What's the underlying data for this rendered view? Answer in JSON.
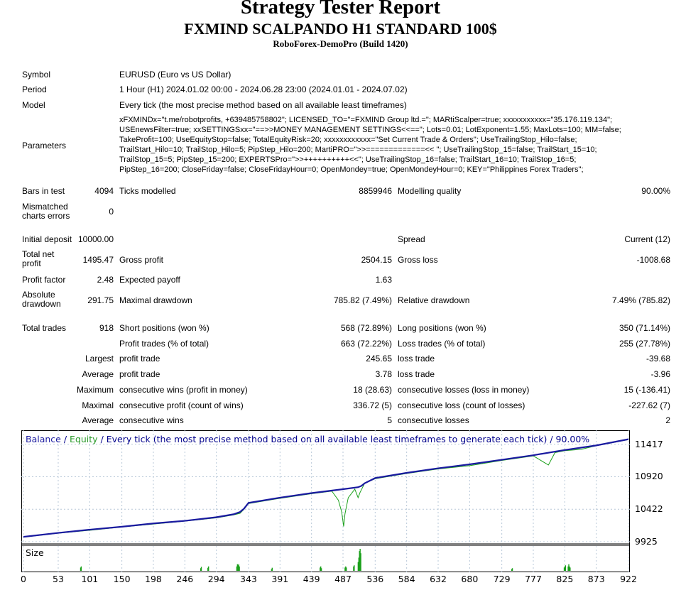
{
  "header": {
    "title": "Strategy Tester Report",
    "ea_name": "FXMIND SCALPANDO H1 STANDARD 100$",
    "server": "RoboForex-DemoPro (Build 1420)"
  },
  "info": {
    "symbol_label": "Symbol",
    "symbol_value": "EURUSD (Euro vs US Dollar)",
    "period_label": "Period",
    "period_value": "1 Hour (H1) 2024.01.02 00:00 - 2024.06.28 23:00 (2024.01.01 - 2024.07.02)",
    "model_label": "Model",
    "model_value": "Every tick (the most precise method based on all available least timeframes)",
    "parameters_label": "Parameters",
    "parameters_lines": [
      "xFXMINDx=\"t.me/robotprofits, +639485758802\"; LICENSED_TO=\"=FXMIND Group ltd.=\"; MARtiScalper=true; xxxxxxxxxxx=\"35.176.119.134\";",
      "USEnewsFilter=true; xxSETTINGSxx=\"==>>MONEY MANAGEMENT SETTINGS<<==\"; Lots=0.01; LotExponent=1.55; MaxLots=100; MM=false;",
      "TakeProfit=100; UseEquityStop=false; TotalEquityRisk=20; xxxxxxxxxxxx=\"Set Current Trade & Orders\"; UseTrailingStop_Hilo=false;",
      "TrailStart_Hilo=10; TrailStop_Hilo=5; PipStep_Hilo=200; MartiPRO=\">>=============<< \"; UseTrailingStop_15=false; TrailStart_15=10;",
      "TrailStop_15=5; PipStep_15=200; EXPERTSPro=\">>++++++++++<<\"; UseTrailingStop_16=false; TrailStart_16=10; TrailStop_16=5;",
      "PipStep_16=200; CloseFriday=false; CloseFridayHour=0; OpenMondey=true; OpenMondeyHour=0; KEY=\"Philippines Forex Traders\";"
    ]
  },
  "stats": {
    "bars_label": "Bars in test",
    "bars_value": "4094",
    "ticks_label": "Ticks modelled",
    "ticks_value": "8859946",
    "quality_label": "Modelling quality",
    "quality_value": "90.00%",
    "mismatch_label": "Mismatched charts errors",
    "mismatch_value": "0",
    "deposit_label": "Initial deposit",
    "deposit_value": "10000.00",
    "spread_label": "Spread",
    "spread_value": "Current (12)",
    "net_label": "Total net profit",
    "net_value": "1495.47",
    "gross_profit_label": "Gross profit",
    "gross_profit_value": "2504.15",
    "gross_loss_label": "Gross loss",
    "gross_loss_value": "-1008.68",
    "pf_label": "Profit factor",
    "pf_value": "2.48",
    "ep_label": "Expected payoff",
    "ep_value": "1.63",
    "abs_dd_label": "Absolute drawdown",
    "abs_dd_value": "291.75",
    "max_dd_label": "Maximal drawdown",
    "max_dd_value": "785.82 (7.49%)",
    "rel_dd_label": "Relative drawdown",
    "rel_dd_value": "7.49% (785.82)",
    "trades_label": "Total trades",
    "trades_value": "918",
    "short_label": "Short positions (won %)",
    "short_value": "568 (72.89%)",
    "long_label": "Long positions (won %)",
    "long_value": "350 (71.14%)",
    "pt_label": "Profit trades (% of total)",
    "pt_value": "663 (72.22%)",
    "lt_label": "Loss trades (% of total)",
    "lt_value": "255 (27.78%)",
    "largest_label": "Largest",
    "largest_pt_label": "profit trade",
    "largest_pt_value": "245.65",
    "largest_lt_label": "loss trade",
    "largest_lt_value": "-39.68",
    "average_label": "Average",
    "average_pt_label": "profit trade",
    "average_pt_value": "3.78",
    "average_lt_label": "loss trade",
    "average_lt_value": "-3.96",
    "maximum_label": "Maximum",
    "max_cw_label": "consecutive wins (profit in money)",
    "max_cw_value": "18 (28.63)",
    "max_cl_label": "consecutive losses (loss in money)",
    "max_cl_value": "15 (-136.41)",
    "maximal_label": "Maximal",
    "mx_cp_label": "consecutive profit (count of wins)",
    "mx_cp_value": "336.72 (5)",
    "mx_cl_label": "consecutive loss (count of losses)",
    "mx_cl_value": "-227.62 (7)",
    "average2_label": "Average",
    "avg_cw_label": "consecutive wins",
    "avg_cw_value": "5",
    "avg_cl_label": "consecutive losses",
    "avg_cl_value": "2"
  },
  "chart_data": {
    "type": "line",
    "title_balance": "Balance",
    "title_sep": "/",
    "title_equity": "Equity",
    "title_rest": "/ Every tick (the most precise method based on all available least timeframes to generate each tick) / 90.00%",
    "size_label": "Size",
    "x_ticks": [
      0,
      53,
      101,
      150,
      198,
      246,
      294,
      343,
      391,
      439,
      487,
      536,
      584,
      632,
      680,
      729,
      777,
      825,
      873,
      922
    ],
    "y_ticks": [
      11417,
      10920,
      10422,
      9925
    ],
    "xlim": [
      0,
      922
    ],
    "ylim": [
      9925,
      11480
    ],
    "colors": {
      "balance": "#1a1aa0",
      "equity": "#1aa01a",
      "title": "#00008b",
      "grid": "#b8c8d8"
    },
    "series": [
      {
        "name": "Balance",
        "points": [
          [
            0,
            10000
          ],
          [
            53,
            10060
          ],
          [
            101,
            10110
          ],
          [
            150,
            10155
          ],
          [
            198,
            10205
          ],
          [
            246,
            10245
          ],
          [
            294,
            10300
          ],
          [
            320,
            10345
          ],
          [
            330,
            10380
          ],
          [
            336,
            10430
          ],
          [
            343,
            10520
          ],
          [
            391,
            10600
          ],
          [
            439,
            10670
          ],
          [
            487,
            10730
          ],
          [
            510,
            10760
          ],
          [
            515,
            10780
          ],
          [
            520,
            10820
          ],
          [
            536,
            10900
          ],
          [
            584,
            10980
          ],
          [
            632,
            11050
          ],
          [
            680,
            11110
          ],
          [
            729,
            11180
          ],
          [
            777,
            11250
          ],
          [
            825,
            11330
          ],
          [
            873,
            11400
          ],
          [
            922,
            11495
          ]
        ]
      },
      {
        "name": "Equity",
        "points": [
          [
            0,
            9995
          ],
          [
            53,
            10055
          ],
          [
            101,
            10100
          ],
          [
            150,
            10150
          ],
          [
            198,
            10195
          ],
          [
            246,
            10240
          ],
          [
            294,
            10290
          ],
          [
            320,
            10335
          ],
          [
            330,
            10360
          ],
          [
            336,
            10420
          ],
          [
            343,
            10510
          ],
          [
            391,
            10590
          ],
          [
            439,
            10660
          ],
          [
            470,
            10700
          ],
          [
            480,
            10560
          ],
          [
            485,
            10380
          ],
          [
            488,
            10160
          ],
          [
            490,
            10350
          ],
          [
            495,
            10600
          ],
          [
            505,
            10730
          ],
          [
            510,
            10600
          ],
          [
            513,
            10680
          ],
          [
            520,
            10820
          ],
          [
            536,
            10890
          ],
          [
            584,
            10970
          ],
          [
            632,
            11040
          ],
          [
            680,
            11090
          ],
          [
            729,
            11170
          ],
          [
            777,
            11240
          ],
          [
            800,
            11100
          ],
          [
            810,
            11290
          ],
          [
            825,
            11320
          ],
          [
            850,
            11340
          ],
          [
            873,
            11395
          ],
          [
            922,
            11490
          ]
        ]
      }
    ],
    "size_series": [
      [
        87,
        0.15
      ],
      [
        88,
        0.2
      ],
      [
        270,
        0.12
      ],
      [
        271,
        0.18
      ],
      [
        281,
        0.14
      ],
      [
        282,
        0.2
      ],
      [
        325,
        0.2
      ],
      [
        326,
        0.3
      ],
      [
        327,
        0.25
      ],
      [
        328,
        0.3
      ],
      [
        329,
        0.2
      ],
      [
        378,
        0.08
      ],
      [
        379,
        0.14
      ],
      [
        452,
        0.15
      ],
      [
        453,
        0.2
      ],
      [
        454,
        0.12
      ],
      [
        490,
        0.15
      ],
      [
        491,
        0.2
      ],
      [
        492,
        0.15
      ],
      [
        503,
        0.2
      ],
      [
        504,
        0.25
      ],
      [
        510,
        0.4
      ],
      [
        511,
        0.6
      ],
      [
        512,
        0.9
      ],
      [
        513,
        1.0
      ],
      [
        514,
        0.8
      ],
      [
        744,
        0.08
      ],
      [
        745,
        0.12
      ],
      [
        824,
        0.15
      ],
      [
        825,
        0.2
      ],
      [
        826,
        0.25
      ],
      [
        830,
        0.2
      ],
      [
        831,
        0.3
      ],
      [
        832,
        0.2
      ],
      [
        833,
        0.15
      ]
    ]
  }
}
